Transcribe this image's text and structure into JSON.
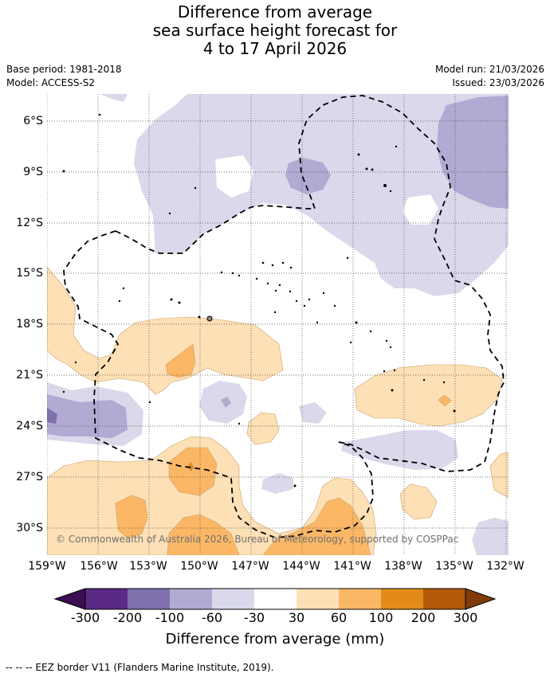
{
  "title_lines": [
    "Difference from average",
    "sea surface height forecast for",
    "4 to 17 April 2026"
  ],
  "base_period": "Base period: 1981-2018",
  "model": "Model: ACCESS-S2",
  "model_run": "Model run: 21/03/2026",
  "issued": "Issued: 23/03/2026",
  "copyright": "© Commonwealth of Australia 2026, Bureau of Meteorology, supported by COSPPac",
  "footnote": "--  --  -- EEZ border V11 (Flanders Marine Institute, 2019).",
  "map": {
    "lat_labels": [
      "6°S",
      "9°S",
      "12°S",
      "15°S",
      "18°S",
      "21°S",
      "24°S",
      "27°S",
      "30°S"
    ],
    "lon_labels": [
      "159°W",
      "156°W",
      "153°W",
      "150°W",
      "147°W",
      "144°W",
      "141°W",
      "138°W",
      "135°W",
      "132°W"
    ]
  },
  "colorbar": {
    "title": "Difference from average (mm)",
    "ticks": [
      "-300",
      "-200",
      "-100",
      "-60",
      "-30",
      "30",
      "60",
      "100",
      "200",
      "300"
    ],
    "colors": {
      "below_min": "#3b0f52",
      "n300_200": "#5a2a86",
      "n200_100": "#8070ae",
      "n100_60": "#b1aad3",
      "n60_30": "#d9d9eb",
      "n30_30": "#ffffff",
      "p30_60": "#fde0b6",
      "p60_100": "#fbb766",
      "p100_200": "#e38b19",
      "p200_300": "#b35a08",
      "above_max": "#7f3b08"
    }
  }
}
